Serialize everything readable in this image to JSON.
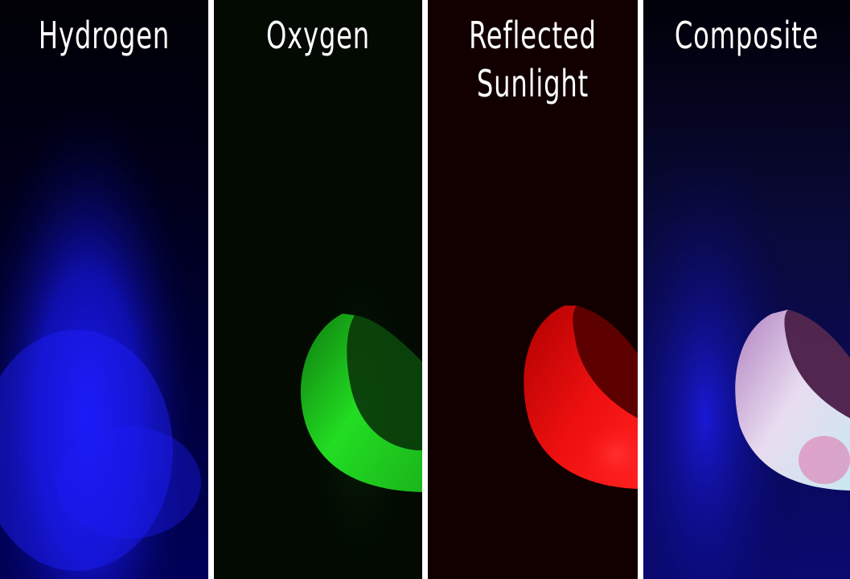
{
  "panels": [
    {
      "label": "Hydrogen",
      "color": "#1a1aff"
    },
    {
      "label": "Oxygen",
      "color": "#22dd22"
    },
    {
      "label": "Reflected\nSunlight",
      "color": "#ff1a1a"
    },
    {
      "label": "Composite",
      "color": "#d8c8e8"
    }
  ],
  "colors": {
    "divider": "#ffffff",
    "label_text": "#ffffff"
  }
}
